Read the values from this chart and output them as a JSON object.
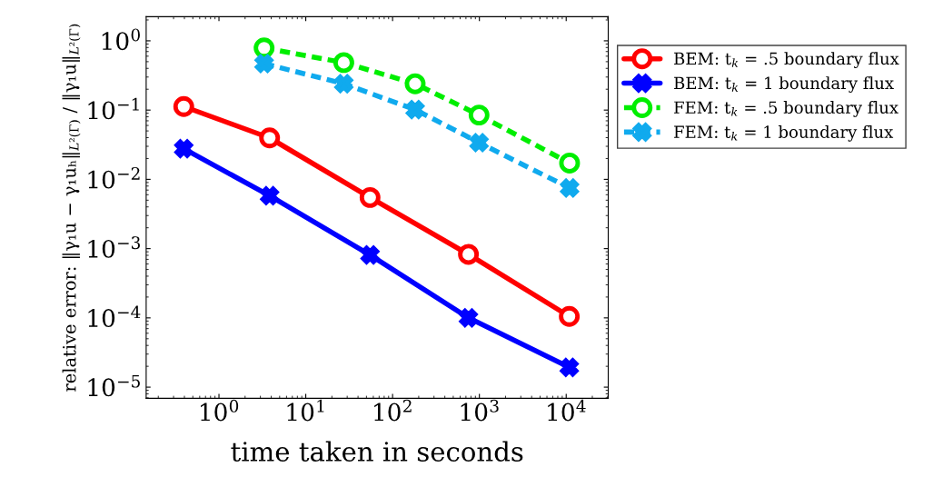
{
  "chart_data": {
    "type": "line",
    "xlabel": "time taken in seconds",
    "ylabel": "relative error: ‖γ₁u − γ₁uₕ‖$_{L²(Γ)}$ / ‖γ₁u‖$_{L²(Γ)}$",
    "log": "xy",
    "grid": false,
    "legend": "right",
    "xlim": [
      0.145,
      30500
    ],
    "ylim": [
      6.9e-06,
      2.23
    ],
    "xticks": [
      {
        "value": 1,
        "label": "10$^{0}$"
      },
      {
        "value": 10,
        "label": "10$^{1}$"
      },
      {
        "value": 100,
        "label": "10$^{2}$"
      },
      {
        "value": 1000,
        "label": "10$^{3}$"
      },
      {
        "value": 10000,
        "label": "10$^{4}$"
      }
    ],
    "yticks": [
      {
        "value": 1e-05,
        "label": "10$^{−5}$"
      },
      {
        "value": 0.0001,
        "label": "10$^{−4}$"
      },
      {
        "value": 0.001,
        "label": "10$^{−3}$"
      },
      {
        "value": 0.01,
        "label": "10$^{−2}$"
      },
      {
        "value": 0.1,
        "label": "10$^{−1}$"
      },
      {
        "value": 1,
        "label": "10$^{0}$"
      }
    ],
    "series": [
      {
        "name": "BEM: t$_{k}$ = .5 boundary flux",
        "color": "#ff0000",
        "marker": "circle",
        "line_style": "solid",
        "x": [
          0.393,
          3.83,
          55,
          748,
          10850
        ],
        "values": [
          0.1125,
          0.0397,
          0.00547,
          0.000826,
          0.000105
        ]
      },
      {
        "name": "BEM: t$_{k}$ = 1 boundary flux",
        "color": "#0000ff",
        "marker": "cross",
        "line_style": "solid",
        "x": [
          0.393,
          3.83,
          55,
          748,
          10850
        ],
        "values": [
          0.0277,
          0.0058,
          0.000809,
          0.0001,
          1.93e-05
        ]
      },
      {
        "name": "FEM: t$_{k}$ = .5 boundary flux",
        "color": "#00ee00",
        "marker": "circle",
        "line_style": "dashed",
        "x": [
          3.31,
          27.4,
          182,
          991,
          10940
        ],
        "values": [
          0.789,
          0.485,
          0.24,
          0.0848,
          0.0172
        ]
      },
      {
        "name": "FEM: t$_{k}$ = 1 boundary flux",
        "color": "#10aaee",
        "marker": "cross",
        "line_style": "dashed",
        "x": [
          3.31,
          27.4,
          182,
          991,
          10940
        ],
        "values": [
          0.469,
          0.24,
          0.1016,
          0.0339,
          0.0075
        ]
      }
    ]
  }
}
